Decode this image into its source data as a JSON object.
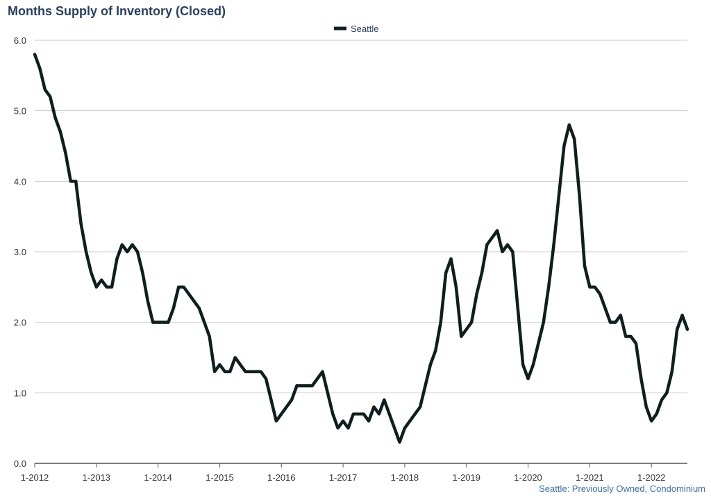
{
  "chart_data": {
    "type": "line",
    "title": "Months Supply of Inventory (Closed)",
    "footnote": "Seattle: Previously Owned, Condominium",
    "xlabel": "",
    "ylabel": "",
    "ylim": [
      0,
      6
    ],
    "y_ticks": [
      "0.0",
      "1.0",
      "2.0",
      "3.0",
      "4.0",
      "5.0",
      "6.0"
    ],
    "x_ticks": [
      "1-2012",
      "1-2013",
      "1-2014",
      "1-2015",
      "1-2016",
      "1-2017",
      "1-2018",
      "1-2019",
      "1-2020",
      "1-2021",
      "1-2022"
    ],
    "grid": true,
    "legend": "top-center",
    "x_start": "1-2012",
    "x_unit": "month",
    "series": [
      {
        "name": "Seattle",
        "color": "#0f1e1e",
        "values": [
          5.8,
          5.6,
          5.3,
          5.2,
          4.9,
          4.7,
          4.4,
          4.0,
          4.0,
          3.4,
          3.0,
          2.7,
          2.5,
          2.6,
          2.5,
          2.5,
          2.9,
          3.1,
          3.0,
          3.1,
          3.0,
          2.7,
          2.3,
          2.0,
          2.0,
          2.0,
          2.0,
          2.2,
          2.5,
          2.5,
          2.4,
          2.3,
          2.2,
          2.0,
          1.8,
          1.3,
          1.4,
          1.3,
          1.3,
          1.5,
          1.4,
          1.3,
          1.3,
          1.3,
          1.3,
          1.2,
          0.9,
          0.6,
          0.7,
          0.8,
          0.9,
          1.1,
          1.1,
          1.1,
          1.1,
          1.2,
          1.3,
          1.0,
          0.7,
          0.5,
          0.6,
          0.5,
          0.7,
          0.7,
          0.7,
          0.6,
          0.8,
          0.7,
          0.9,
          0.7,
          0.5,
          0.3,
          0.5,
          0.6,
          0.7,
          0.8,
          1.1,
          1.4,
          1.6,
          2.0,
          2.7,
          2.9,
          2.5,
          1.8,
          1.9,
          2.0,
          2.4,
          2.7,
          3.1,
          3.2,
          3.3,
          3.0,
          3.1,
          3.0,
          2.2,
          1.4,
          1.2,
          1.4,
          1.7,
          2.0,
          2.5,
          3.1,
          3.8,
          4.5,
          4.8,
          4.6,
          3.8,
          2.8,
          2.5,
          2.5,
          2.4,
          2.2,
          2.0,
          2.0,
          2.1,
          1.8,
          1.8,
          1.7,
          1.2,
          0.8,
          0.6,
          0.7,
          0.9,
          1.0,
          1.3,
          1.9,
          2.1,
          1.9
        ]
      }
    ]
  }
}
